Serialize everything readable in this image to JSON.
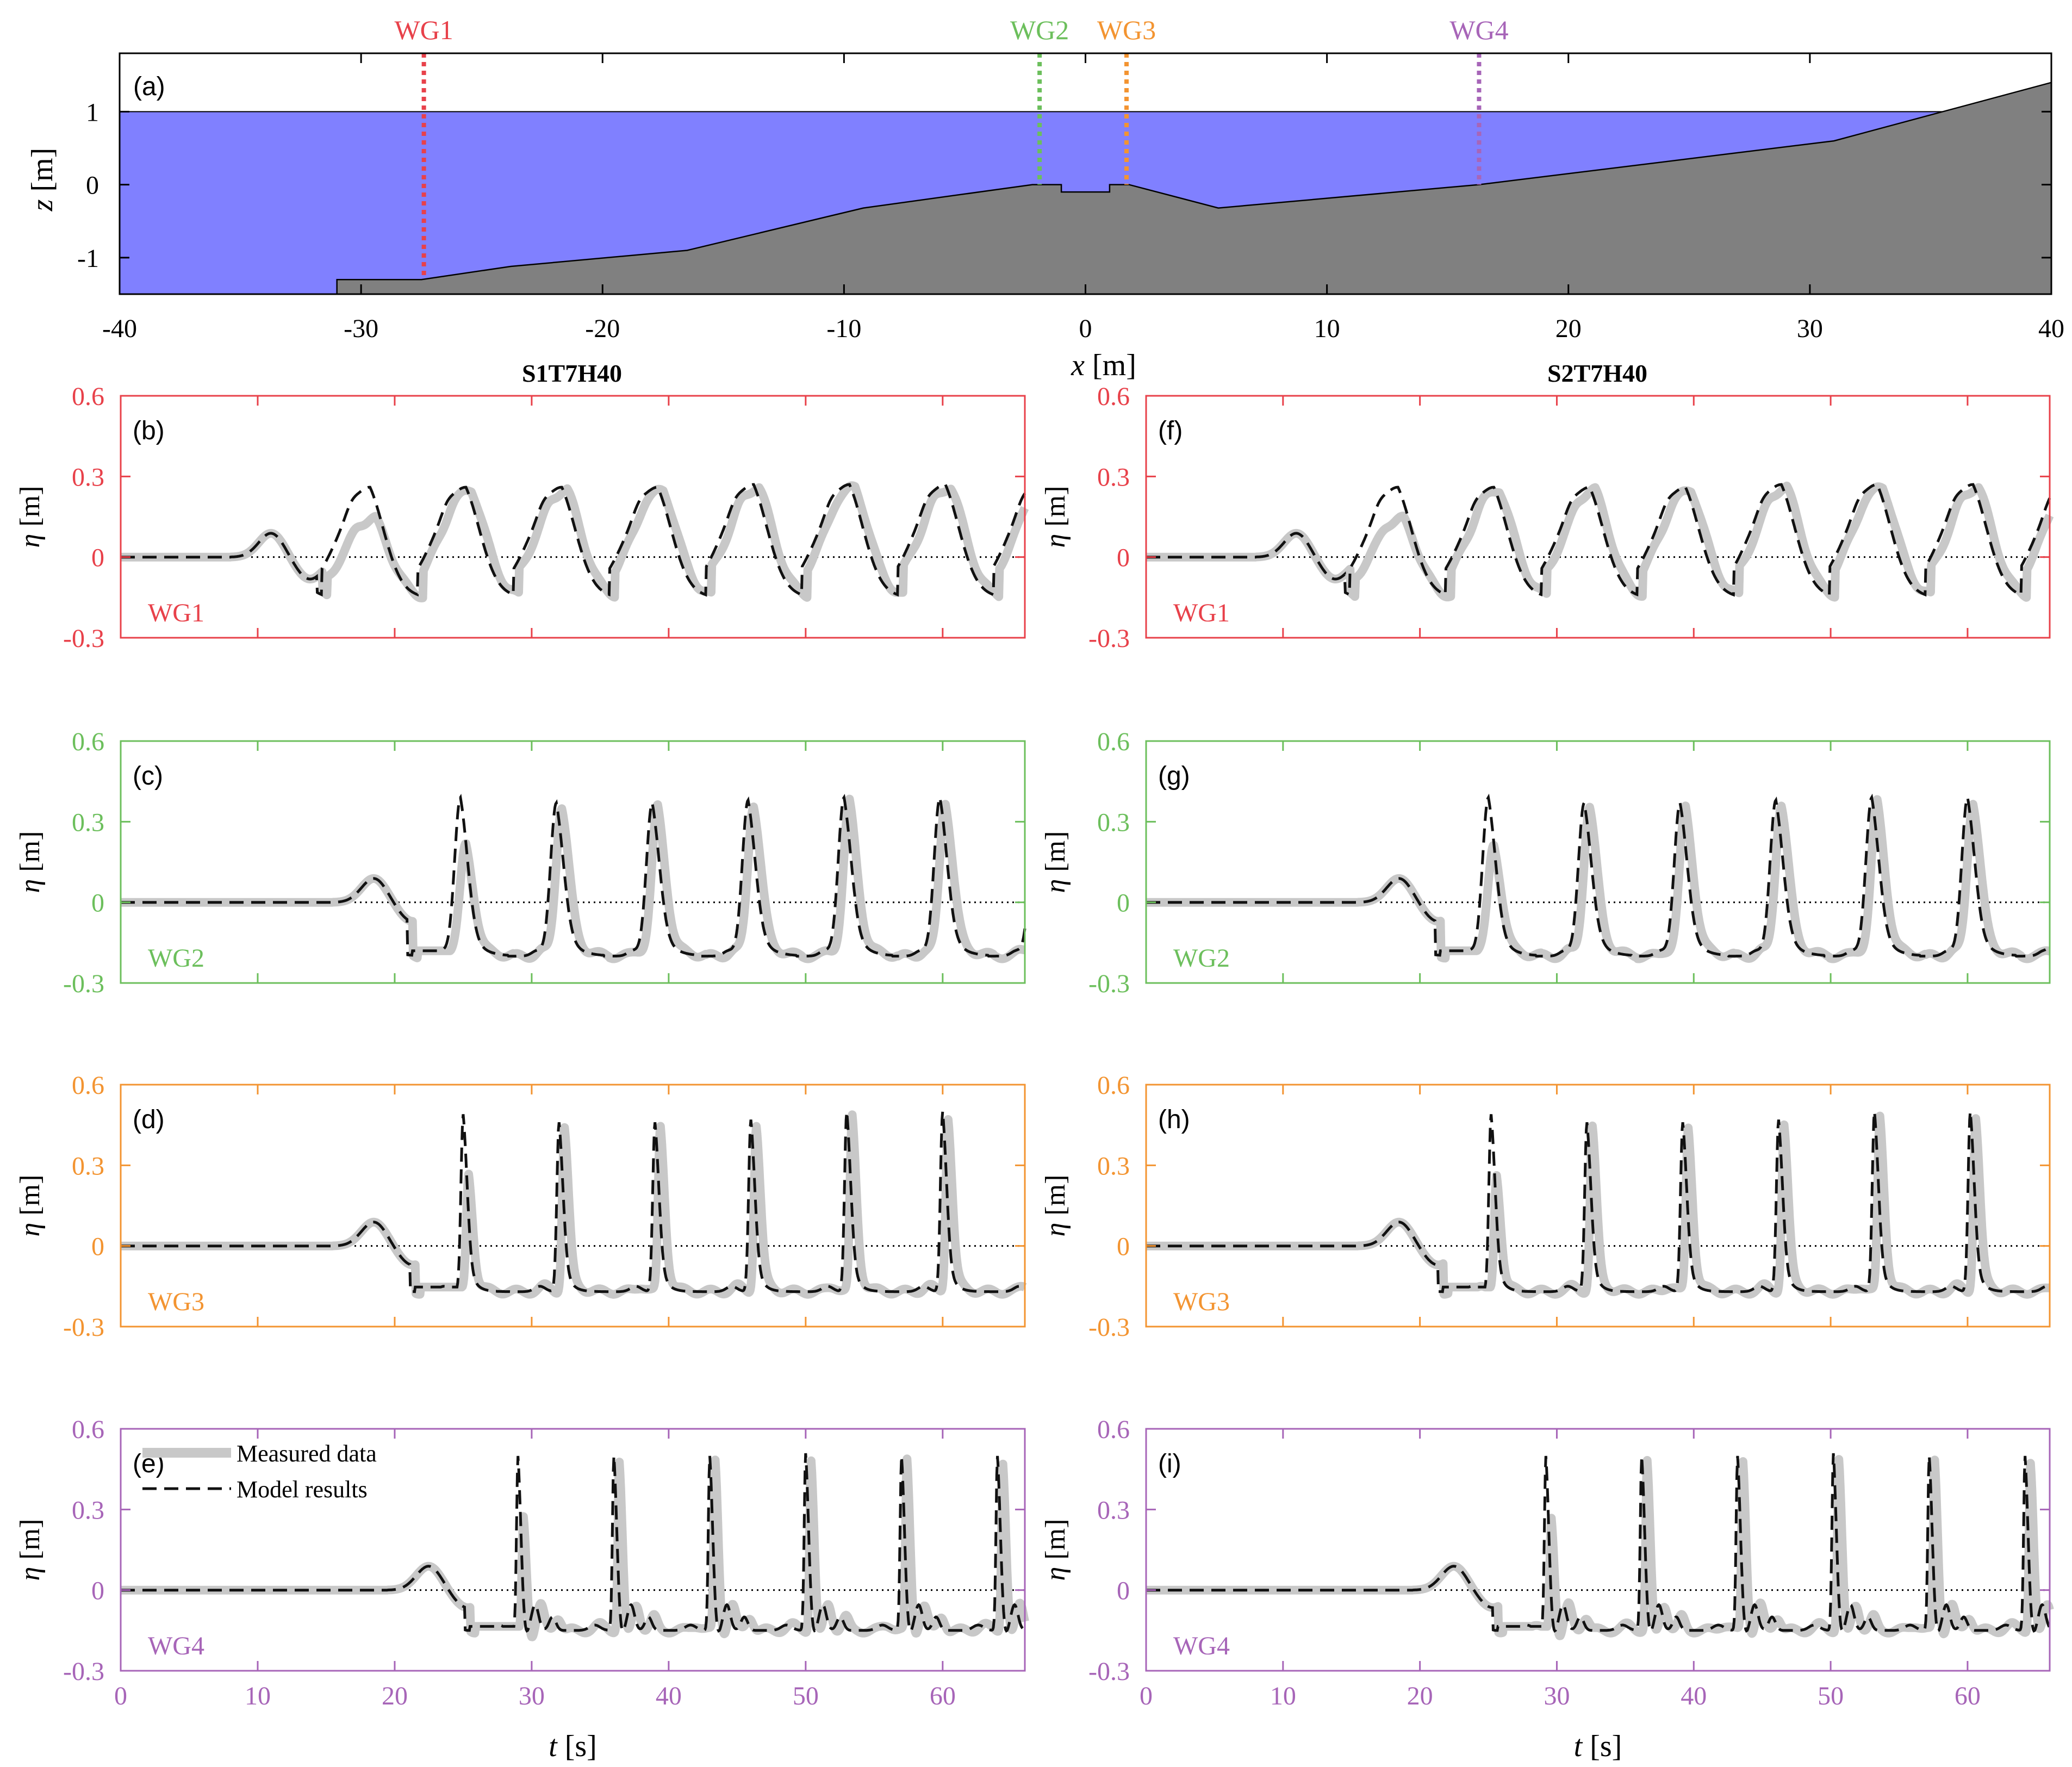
{
  "chart_data": [
    {
      "type": "area",
      "panel": "(a)",
      "xlabel": "x [m]",
      "ylabel": "z [m]",
      "xlim": [
        -40,
        40
      ],
      "ylim": [
        -1.5,
        1.8
      ],
      "xticks": [
        "-40",
        "-30",
        "-20",
        "-10",
        "0",
        "10",
        "20",
        "30",
        "40"
      ],
      "yticks": [
        "1",
        "0",
        "-1"
      ],
      "colors": {
        "water": "#8080ff",
        "bed": "#808080"
      },
      "water_level": 1.0,
      "bathymetry": {
        "x": [
          -31,
          -31,
          -27.5,
          -23.8,
          -16.5,
          -9.2,
          -2.2,
          -1.0,
          -1.0,
          1.0,
          1.0,
          1.8,
          5.5,
          16.3,
          31.0,
          40.0
        ],
        "z": [
          -1.5,
          -1.3,
          -1.3,
          -1.12,
          -0.9,
          -0.32,
          0.0,
          0.0,
          -0.1,
          -0.1,
          0.0,
          0.0,
          -0.32,
          0.0,
          0.6,
          1.4
        ]
      },
      "gauges": [
        {
          "name": "WG1",
          "x": -27.4,
          "color": "#e8414a"
        },
        {
          "name": "WG2",
          "x": -1.9,
          "color": "#6cbf5c"
        },
        {
          "name": "WG3",
          "x": 1.7,
          "color": "#f39431"
        },
        {
          "name": "WG4",
          "x": 16.3,
          "color": "#a765b8"
        }
      ]
    },
    {
      "type": "line",
      "columns": [
        {
          "title": "S1T7H40",
          "panels": [
            "(b)",
            "(c)",
            "(d)",
            "(e)"
          ]
        },
        {
          "title": "S2T7H40",
          "panels": [
            "(f)",
            "(g)",
            "(h)",
            "(i)"
          ]
        }
      ],
      "gauges": [
        "WG1",
        "WG2",
        "WG3",
        "WG4"
      ],
      "gauge_colors": [
        "#e8414a",
        "#6cbf5c",
        "#f39431",
        "#a765b8"
      ],
      "xlabel": "t [s]",
      "ylabel": "η [m]",
      "xlim": [
        0,
        66
      ],
      "ylim": [
        -0.3,
        0.6
      ],
      "xticks": [
        "0",
        "10",
        "20",
        "30",
        "40",
        "50",
        "60"
      ],
      "yticks": [
        "0.6",
        "0.3",
        "0",
        "-0.3"
      ],
      "series": [
        {
          "name": "Measured data",
          "style": "solid",
          "color": "#c8c8c8"
        },
        {
          "name": "Model results",
          "style": "dashed",
          "color": "#111111"
        }
      ],
      "wave_period_s": 7,
      "wave_parameters": {
        "WG1": {
          "peaks": [
            0.26,
            0.26,
            0.26,
            0.26,
            0.27,
            0.27,
            0.27,
            0.28
          ],
          "trough": -0.16
        },
        "WG2": {
          "peaks": [
            0.39,
            0.37,
            0.37,
            0.38,
            0.39,
            0.39,
            0.38,
            0.39
          ],
          "trough": -0.2
        },
        "WG3": {
          "peaks": [
            0.49,
            0.46,
            0.46,
            0.47,
            0.5,
            0.5,
            0.48,
            0.5
          ],
          "trough": -0.17
        },
        "WG4": {
          "peaks": [
            0.5,
            0.5,
            0.5,
            0.51,
            0.5,
            0.5,
            0.48,
            0.5
          ],
          "trough": -0.15
        }
      }
    }
  ]
}
